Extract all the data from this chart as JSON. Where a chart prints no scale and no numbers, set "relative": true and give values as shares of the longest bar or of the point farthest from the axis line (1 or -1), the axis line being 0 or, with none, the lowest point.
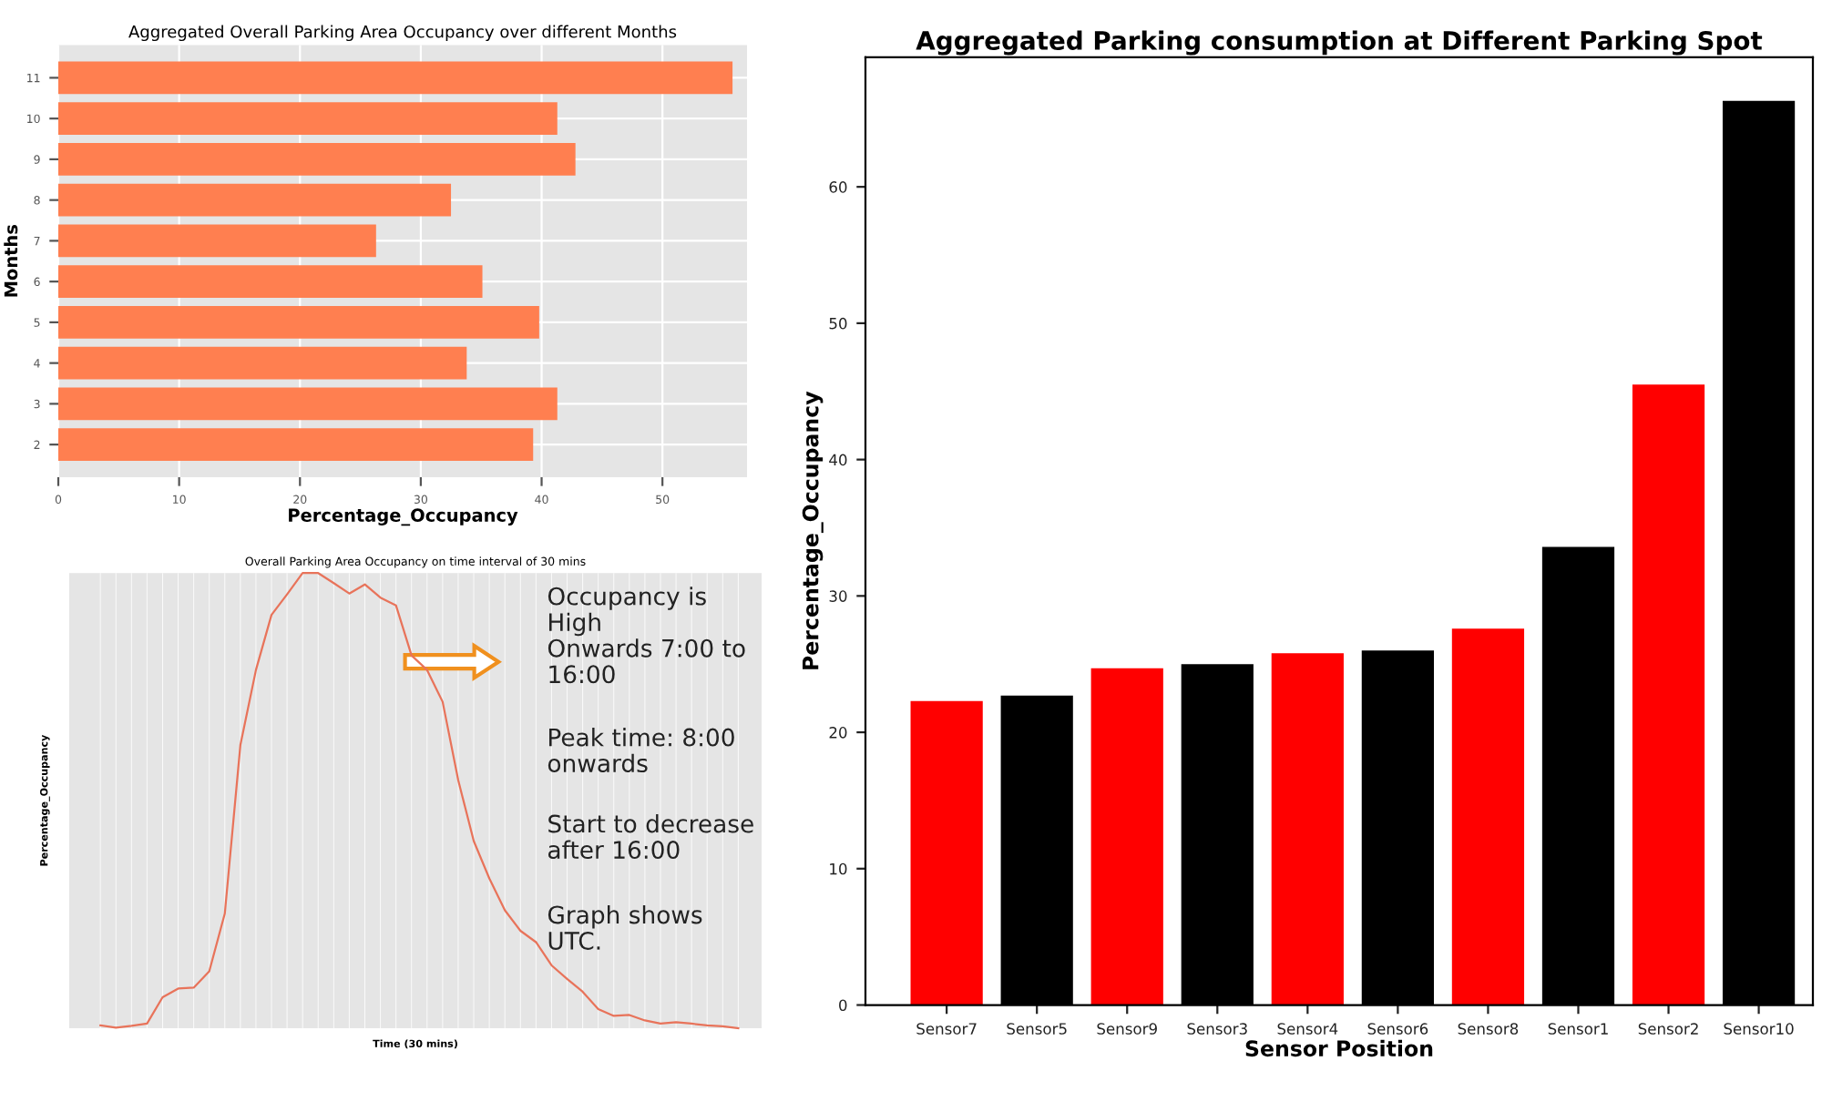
{
  "chart_data": [
    {
      "type": "bar",
      "orientation": "horizontal",
      "title": "Aggregated Overall Parking Area Occupancy over different Months",
      "xlabel": "Percentage_Occupancy",
      "ylabel": "Months",
      "categories": [
        "11",
        "10",
        "9",
        "8",
        "7",
        "6",
        "5",
        "4",
        "3",
        "2"
      ],
      "values": [
        55.8,
        41.3,
        42.8,
        32.5,
        26.3,
        35.1,
        39.8,
        33.8,
        41.3,
        39.3
      ],
      "color": "#ff7f50",
      "xlim": [
        0,
        57
      ],
      "xticks": [
        0,
        10,
        20,
        30,
        40,
        50
      ],
      "grid": true
    },
    {
      "type": "line",
      "relative": true,
      "title": "Overall Parking Area Occupancy on time interval of 30 mins",
      "xlabel": "Time (30 mins)",
      "ylabel": "Percentage_Occupancy",
      "categories": [
        null,
        null,
        null,
        null,
        null,
        null,
        null,
        null,
        null,
        null,
        null,
        null,
        null,
        null,
        null,
        null,
        null,
        null,
        null,
        null,
        null,
        null,
        null,
        null,
        null,
        null,
        null,
        null,
        null,
        null,
        null,
        null,
        null,
        null,
        null,
        null,
        null,
        null,
        null,
        null,
        null,
        null
      ],
      "color": "#e8735a",
      "values": [
        0.006,
        0.001,
        0.005,
        0.01,
        0.068,
        0.087,
        0.089,
        0.125,
        0.252,
        0.622,
        0.787,
        0.908,
        0.953,
        1.0,
        1.0,
        0.978,
        0.955,
        0.975,
        0.946,
        0.929,
        0.819,
        0.787,
        0.717,
        0.545,
        0.411,
        0.329,
        0.259,
        0.214,
        0.189,
        0.138,
        0.108,
        0.08,
        0.042,
        0.027,
        0.029,
        0.017,
        0.01,
        0.013,
        0.01,
        0.006,
        0.004,
        0.0
      ],
      "annotations": [
        "Occupancy is\nHigh\nOnwards 7:00 to\n16:00",
        "Peak time: 8:00\nonwards",
        "Start to decrease\nafter 16:00",
        "Graph shows\nUTC."
      ],
      "grid": true
    },
    {
      "type": "bar",
      "title": "Aggregated Parking consumption at Different Parking Spot",
      "xlabel": "Sensor Position",
      "ylabel": "Percentage_Occupancy",
      "categories": [
        "Sensor7",
        "Sensor5",
        "Sensor9",
        "Sensor3",
        "Sensor4",
        "Sensor6",
        "Sensor8",
        "Sensor1",
        "Sensor2",
        "Sensor10"
      ],
      "values": [
        22.3,
        22.7,
        24.7,
        25.0,
        25.8,
        26.0,
        27.6,
        33.6,
        45.5,
        66.3
      ],
      "colors": [
        "#ff0000",
        "#000000",
        "#ff0000",
        "#000000",
        "#ff0000",
        "#000000",
        "#ff0000",
        "#000000",
        "#ff0000",
        "#000000"
      ],
      "ylim": [
        0,
        69.5
      ],
      "yticks": [
        0,
        10,
        20,
        30,
        40,
        50,
        60
      ]
    }
  ]
}
